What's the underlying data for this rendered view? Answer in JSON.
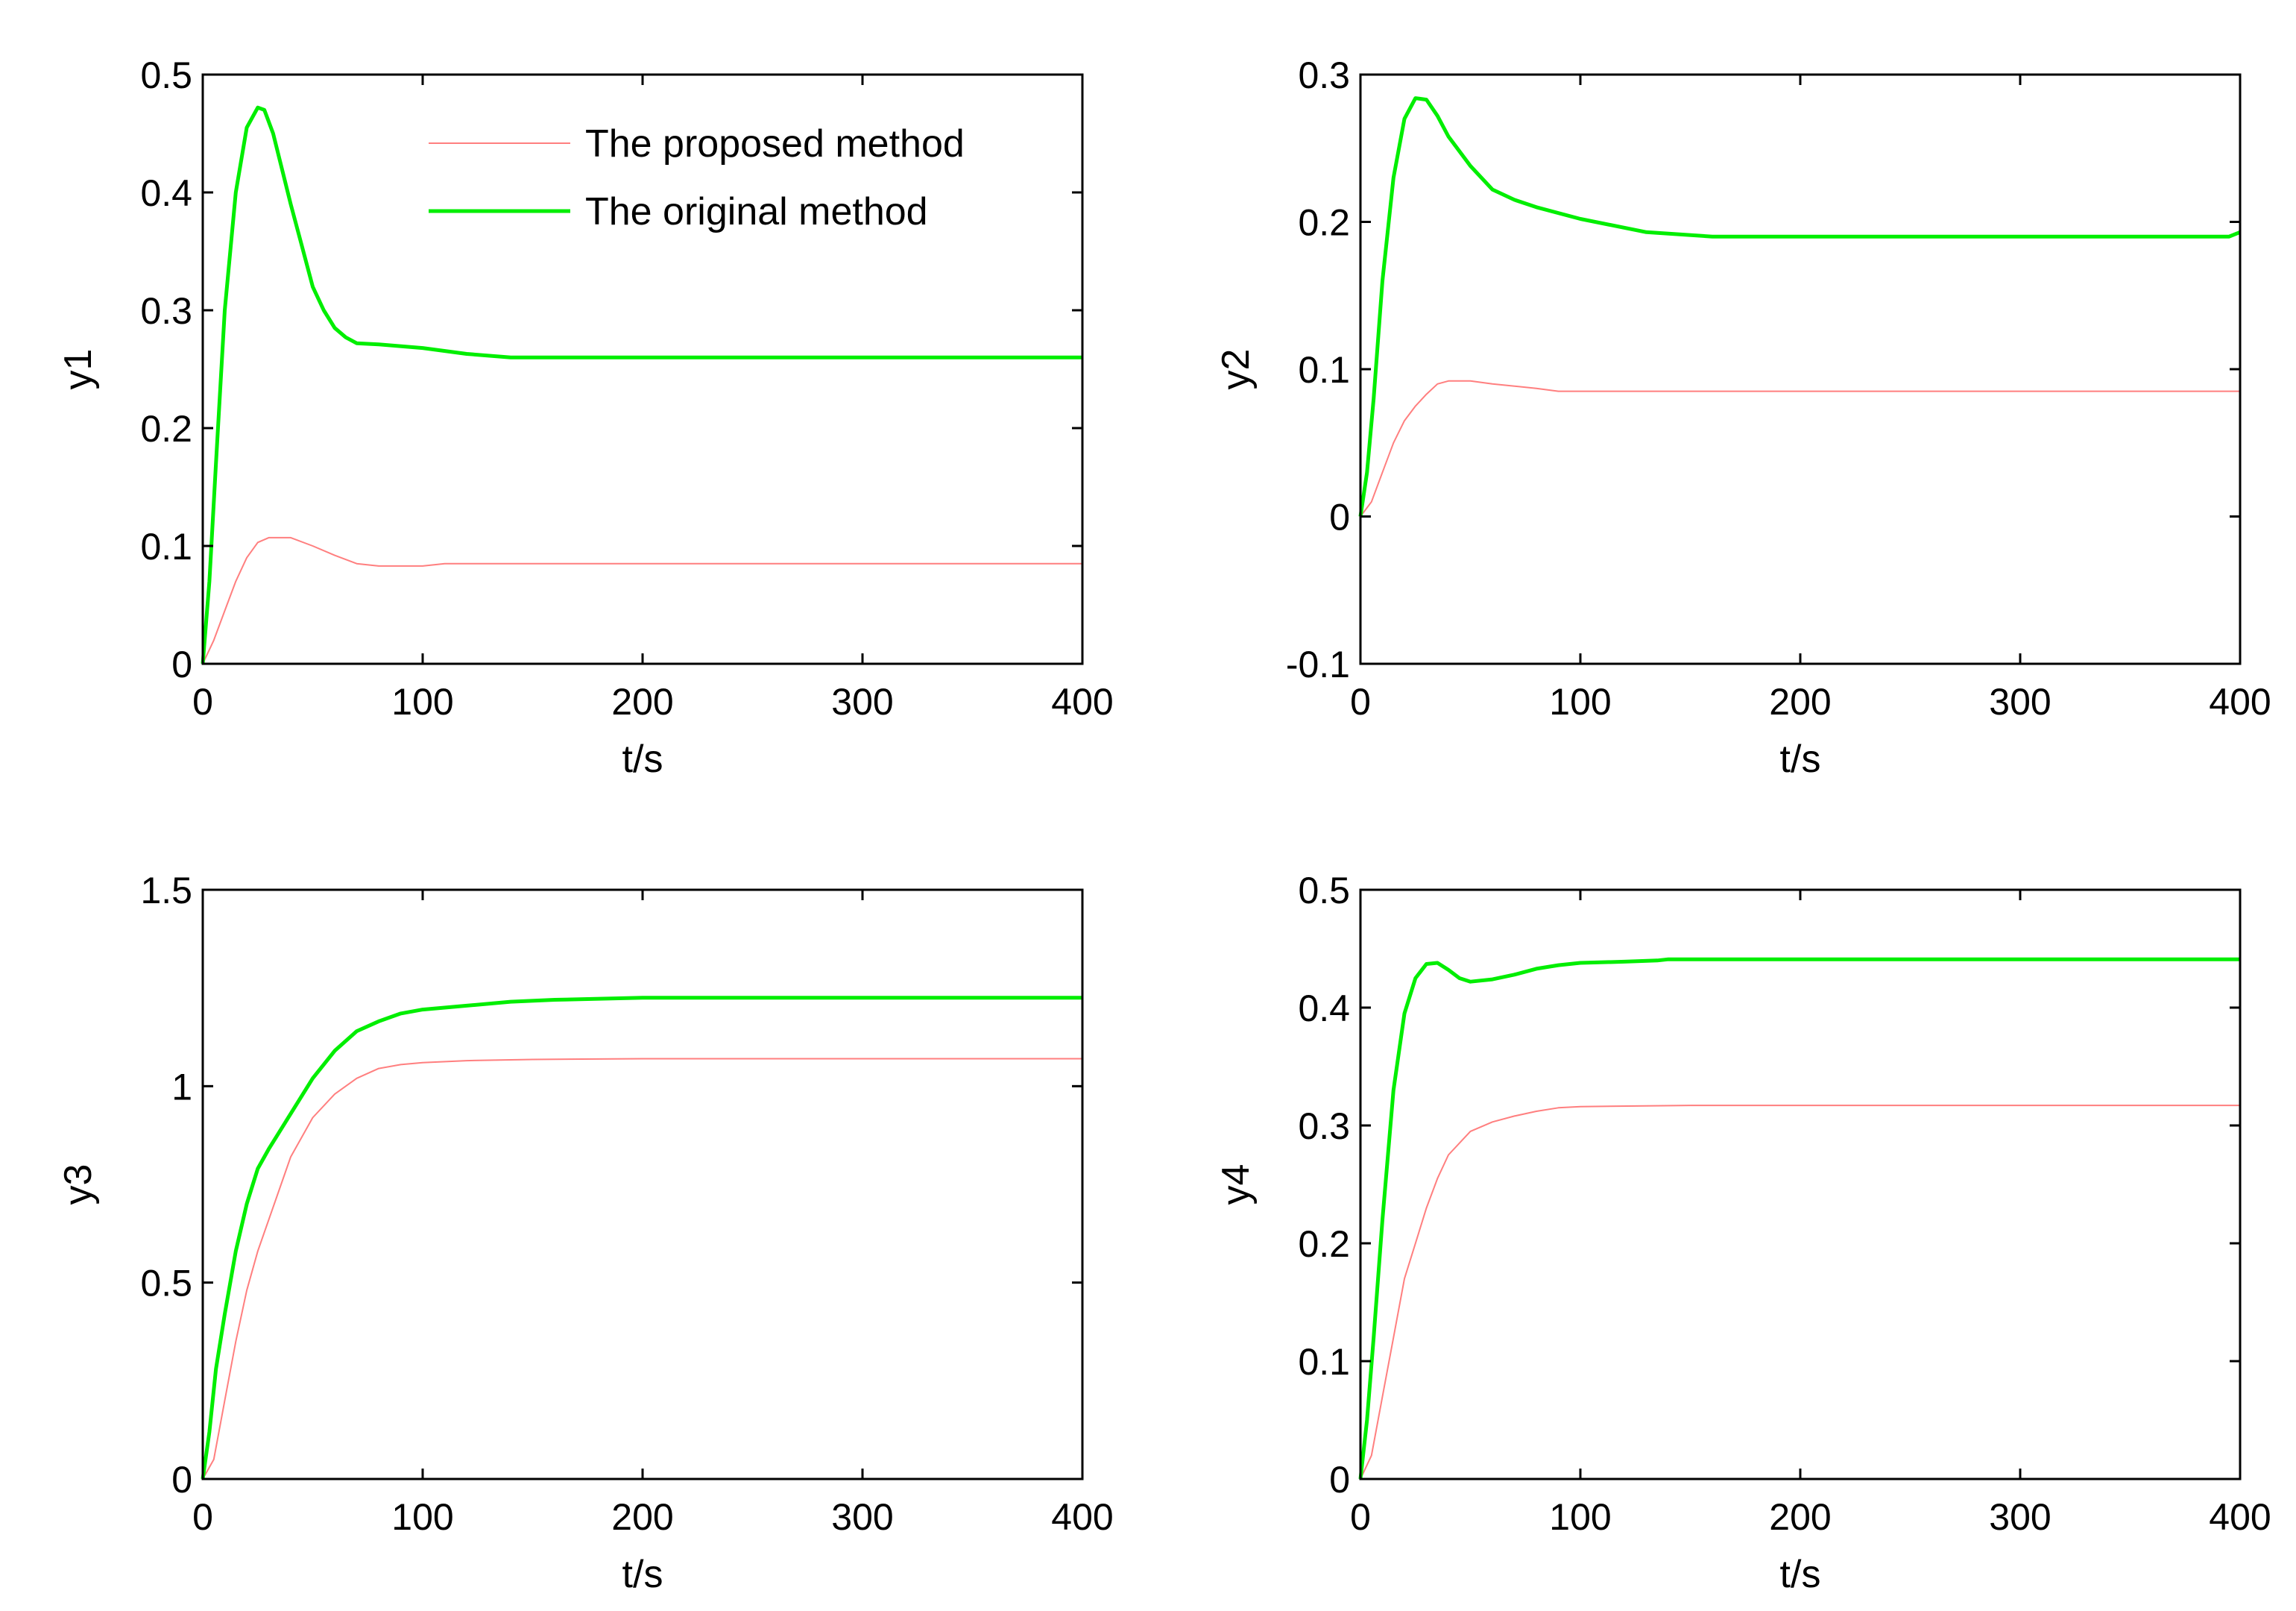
{
  "chart_data": [
    {
      "type": "line",
      "title": "",
      "xlabel": "t/s",
      "ylabel": "y1",
      "xlim": [
        0,
        400
      ],
      "ylim": [
        0,
        0.5
      ],
      "xticks": [
        0,
        100,
        200,
        300,
        400
      ],
      "xtick_labels": [
        "0",
        "100",
        "200",
        "300",
        "400"
      ],
      "yticks": [
        0,
        0.1,
        0.2,
        0.3,
        0.4,
        0.5
      ],
      "ytick_labels": [
        "0",
        "0.1",
        "0.2",
        "0.3",
        "0.4",
        "0.5"
      ],
      "grid": false,
      "legend": {
        "position": "top-right",
        "entries": [
          "The proposed method",
          "The original method"
        ]
      },
      "series": [
        {
          "name": "The proposed method",
          "color": "#ff7f7f",
          "style": "thin",
          "x": [
            0,
            5,
            10,
            15,
            20,
            25,
            30,
            40,
            50,
            60,
            70,
            80,
            100,
            110,
            150,
            200,
            300,
            400
          ],
          "y": [
            0,
            0.02,
            0.045,
            0.07,
            0.09,
            0.103,
            0.107,
            0.107,
            0.1,
            0.092,
            0.085,
            0.083,
            0.083,
            0.085,
            0.085,
            0.085,
            0.085,
            0.085
          ]
        },
        {
          "name": "The original method",
          "color": "#00ee00",
          "style": "thick",
          "x": [
            0,
            3,
            6,
            10,
            15,
            20,
            25,
            28,
            32,
            36,
            40,
            45,
            50,
            55,
            60,
            65,
            70,
            80,
            100,
            120,
            140,
            200,
            300,
            400
          ],
          "y": [
            0,
            0.07,
            0.17,
            0.3,
            0.4,
            0.455,
            0.472,
            0.47,
            0.45,
            0.42,
            0.39,
            0.355,
            0.32,
            0.3,
            0.285,
            0.277,
            0.272,
            0.271,
            0.268,
            0.263,
            0.26,
            0.26,
            0.26,
            0.26
          ]
        }
      ]
    },
    {
      "type": "line",
      "title": "",
      "xlabel": "t/s",
      "ylabel": "y2",
      "xlim": [
        0,
        400
      ],
      "ylim": [
        -0.1,
        0.3
      ],
      "xticks": [
        0,
        100,
        200,
        300,
        400
      ],
      "xtick_labels": [
        "0",
        "100",
        "200",
        "300",
        "400"
      ],
      "yticks": [
        -0.1,
        0,
        0.1,
        0.2,
        0.3
      ],
      "ytick_labels": [
        "-0.1",
        "0",
        "0.1",
        "0.2",
        "0.3"
      ],
      "grid": false,
      "series": [
        {
          "name": "The proposed method",
          "color": "#ff7f7f",
          "style": "thin",
          "x": [
            0,
            5,
            10,
            15,
            20,
            25,
            30,
            35,
            40,
            50,
            60,
            80,
            90,
            100,
            200,
            300,
            400
          ],
          "y": [
            0,
            0.01,
            0.03,
            0.05,
            0.065,
            0.075,
            0.083,
            0.09,
            0.092,
            0.092,
            0.09,
            0.087,
            0.085,
            0.085,
            0.085,
            0.085,
            0.085
          ]
        },
        {
          "name": "The original method",
          "color": "#00ee00",
          "style": "thick",
          "x": [
            0,
            3,
            6,
            10,
            15,
            20,
            25,
            30,
            35,
            40,
            50,
            60,
            70,
            80,
            100,
            130,
            160,
            200,
            300,
            395,
            400
          ],
          "y": [
            0,
            0.03,
            0.08,
            0.16,
            0.23,
            0.27,
            0.284,
            0.283,
            0.272,
            0.258,
            0.238,
            0.222,
            0.215,
            0.21,
            0.202,
            0.193,
            0.19,
            0.19,
            0.19,
            0.19,
            0.193
          ]
        }
      ]
    },
    {
      "type": "line",
      "title": "",
      "xlabel": "t/s",
      "ylabel": "y3",
      "xlim": [
        0,
        400
      ],
      "ylim": [
        0,
        1.5
      ],
      "xticks": [
        0,
        100,
        200,
        300,
        400
      ],
      "xtick_labels": [
        "0",
        "100",
        "200",
        "300",
        "400"
      ],
      "yticks": [
        0,
        0.5,
        1,
        1.5
      ],
      "ytick_labels": [
        "0",
        "0.5",
        "1",
        "1.5"
      ],
      "grid": false,
      "series": [
        {
          "name": "The proposed method",
          "color": "#ff7f7f",
          "style": "thin",
          "x": [
            0,
            5,
            10,
            15,
            20,
            25,
            30,
            40,
            50,
            60,
            70,
            80,
            90,
            100,
            120,
            150,
            200,
            300,
            400
          ],
          "y": [
            0,
            0.05,
            0.2,
            0.35,
            0.48,
            0.58,
            0.66,
            0.82,
            0.92,
            0.98,
            1.02,
            1.045,
            1.055,
            1.06,
            1.065,
            1.068,
            1.07,
            1.07,
            1.07
          ]
        },
        {
          "name": "The original method",
          "color": "#00ee00",
          "style": "thick",
          "x": [
            0,
            3,
            6,
            10,
            15,
            20,
            25,
            30,
            40,
            50,
            60,
            70,
            80,
            90,
            100,
            120,
            140,
            160,
            200,
            300,
            400
          ],
          "y": [
            0,
            0.12,
            0.28,
            0.42,
            0.58,
            0.7,
            0.79,
            0.84,
            0.93,
            1.02,
            1.09,
            1.14,
            1.165,
            1.185,
            1.195,
            1.205,
            1.215,
            1.22,
            1.225,
            1.225,
            1.225
          ]
        }
      ]
    },
    {
      "type": "line",
      "title": "",
      "xlabel": "t/s",
      "ylabel": "y4",
      "xlim": [
        0,
        400
      ],
      "ylim": [
        0,
        0.5
      ],
      "xticks": [
        0,
        100,
        200,
        300,
        400
      ],
      "xtick_labels": [
        "0",
        "100",
        "200",
        "300",
        "400"
      ],
      "yticks": [
        0,
        0.1,
        0.2,
        0.3,
        0.4,
        0.5
      ],
      "ytick_labels": [
        "0",
        "0.1",
        "0.2",
        "0.3",
        "0.4",
        "0.5"
      ],
      "grid": false,
      "series": [
        {
          "name": "The proposed method",
          "color": "#ff7f7f",
          "style": "thin",
          "x": [
            0,
            5,
            10,
            15,
            20,
            25,
            30,
            35,
            40,
            50,
            60,
            70,
            80,
            90,
            100,
            150,
            200,
            300,
            400
          ],
          "y": [
            0,
            0.02,
            0.07,
            0.12,
            0.17,
            0.2,
            0.23,
            0.255,
            0.275,
            0.295,
            0.303,
            0.308,
            0.312,
            0.315,
            0.316,
            0.317,
            0.317,
            0.317,
            0.317
          ]
        },
        {
          "name": "The original method",
          "color": "#00ee00",
          "style": "thick",
          "x": [
            0,
            3,
            6,
            10,
            15,
            20,
            25,
            30,
            35,
            40,
            45,
            50,
            60,
            70,
            80,
            90,
            100,
            120,
            135,
            140,
            200,
            300,
            400
          ],
          "y": [
            0,
            0.05,
            0.12,
            0.22,
            0.33,
            0.395,
            0.425,
            0.437,
            0.438,
            0.432,
            0.425,
            0.422,
            0.424,
            0.428,
            0.433,
            0.436,
            0.438,
            0.439,
            0.44,
            0.441,
            0.441,
            0.441,
            0.441
          ]
        }
      ]
    }
  ]
}
